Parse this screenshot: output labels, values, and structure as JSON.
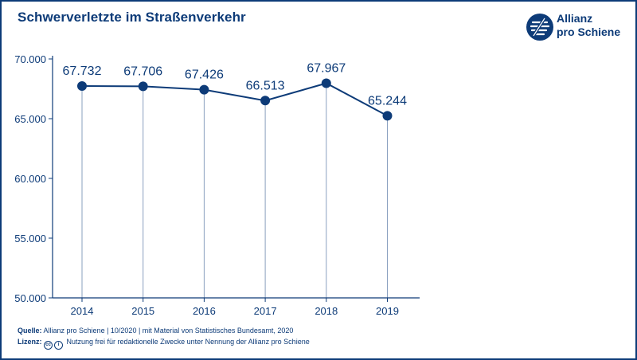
{
  "header": {
    "title": "Schwerverletzte im Straßenverkehr",
    "logo_line1": "Allianz",
    "logo_line2": "pro Schiene"
  },
  "footer": {
    "source_label": "Quelle:",
    "source_text": "Allianz pro Schiene | 10/2020 | mit Material von Statistisches Bundesamt, 2020",
    "license_label": "Lizenz:",
    "license_icon1": "cc",
    "license_icon2": "i",
    "license_text": "Nutzung frei für redaktionelle Zwecke unter Nennung der Allianz pro Schiene"
  },
  "colors": {
    "brand": "#0d3b78",
    "grid": "#8aa0bf"
  },
  "chart_data": {
    "type": "line",
    "title": "Schwerverletzte im Straßenverkehr",
    "xlabel": "",
    "ylabel": "",
    "categories": [
      "2014",
      "2015",
      "2016",
      "2017",
      "2018",
      "2019"
    ],
    "values": [
      67732,
      67706,
      67426,
      66513,
      67967,
      65244
    ],
    "value_labels": [
      "67.732",
      "67.706",
      "67.426",
      "66.513",
      "67.967",
      "65.244"
    ],
    "ylim": [
      50000,
      70000
    ],
    "yticks": [
      50000,
      55000,
      60000,
      65000,
      70000
    ],
    "ytick_labels": [
      "50.000",
      "55.000",
      "60.000",
      "65.000",
      "70.000"
    ],
    "grid": "vertical",
    "legend": "none"
  }
}
